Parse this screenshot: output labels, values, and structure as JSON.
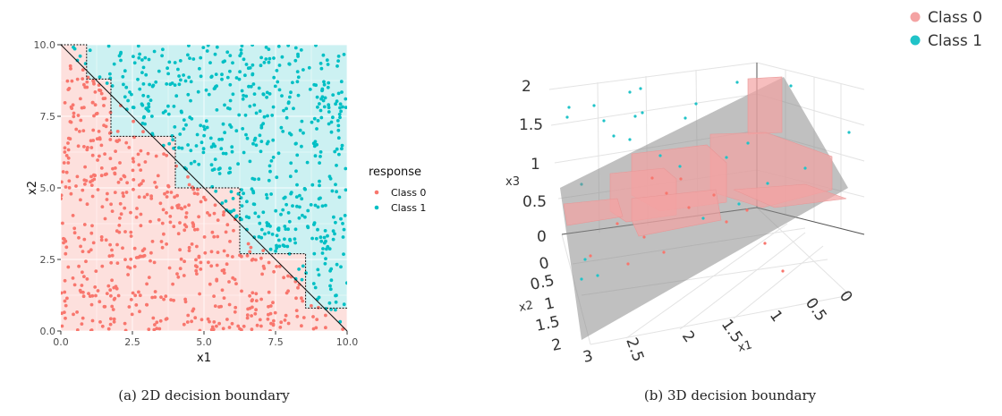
{
  "chart_data": [
    {
      "type": "scatter",
      "caption": "(a) 2D decision boundary",
      "xlabel": "x1",
      "ylabel": "x2",
      "xlim": [
        0,
        10
      ],
      "ylim": [
        0,
        10
      ],
      "xticks": [
        "0.0",
        "2.5",
        "5.0",
        "7.5",
        "10.0"
      ],
      "yticks": [
        "0.0",
        "2.5",
        "5.0",
        "7.5",
        "10.0"
      ],
      "legend": {
        "title": "response",
        "position": "right",
        "entries": [
          "Class 0",
          "Class 1"
        ]
      },
      "colors": {
        "class0": "#F8766D",
        "class1": "#00BFC4",
        "region0": "#FDE0DD",
        "region1": "#CCF1F2"
      },
      "true_boundary": [
        [
          0,
          10
        ],
        [
          10,
          0
        ]
      ],
      "step_boundary": [
        [
          0,
          10
        ],
        [
          0.9,
          10
        ],
        [
          0.9,
          8.8
        ],
        [
          1.75,
          8.8
        ],
        [
          1.75,
          7.6
        ],
        [
          1.75,
          6.8
        ],
        [
          4.0,
          6.8
        ],
        [
          4.0,
          5.0
        ],
        [
          6.25,
          5.0
        ],
        [
          6.25,
          2.7
        ],
        [
          8.55,
          2.7
        ],
        [
          8.55,
          0.8
        ],
        [
          10,
          0.8
        ]
      ],
      "series": [
        {
          "name": "Class 0",
          "rule": "x1 + x2 < 10",
          "count": 560
        },
        {
          "name": "Class 1",
          "rule": "x1 + x2 > 10",
          "count": 560
        }
      ]
    },
    {
      "type": "scatter",
      "caption": "(b) 3D decision boundary",
      "xlabel": "x1",
      "ylabel": "x2",
      "zlabel": "x3",
      "xticks": [
        "0",
        "0.5",
        "1",
        "1.5",
        "2"
      ],
      "yticks": [
        "0",
        "0.5",
        "1",
        "1.5",
        "2",
        "2.5",
        "3"
      ],
      "zticks": [
        "0",
        "0.5",
        "1",
        "1.5",
        "2"
      ],
      "legend": {
        "position": "top-right",
        "entries": [
          "Class 0",
          "Class 1"
        ]
      },
      "colors": {
        "class0": "#F8766D",
        "class1": "#20C3C8",
        "plane": "#8C8C8C",
        "boxes": "#F4A3A3"
      }
    }
  ]
}
